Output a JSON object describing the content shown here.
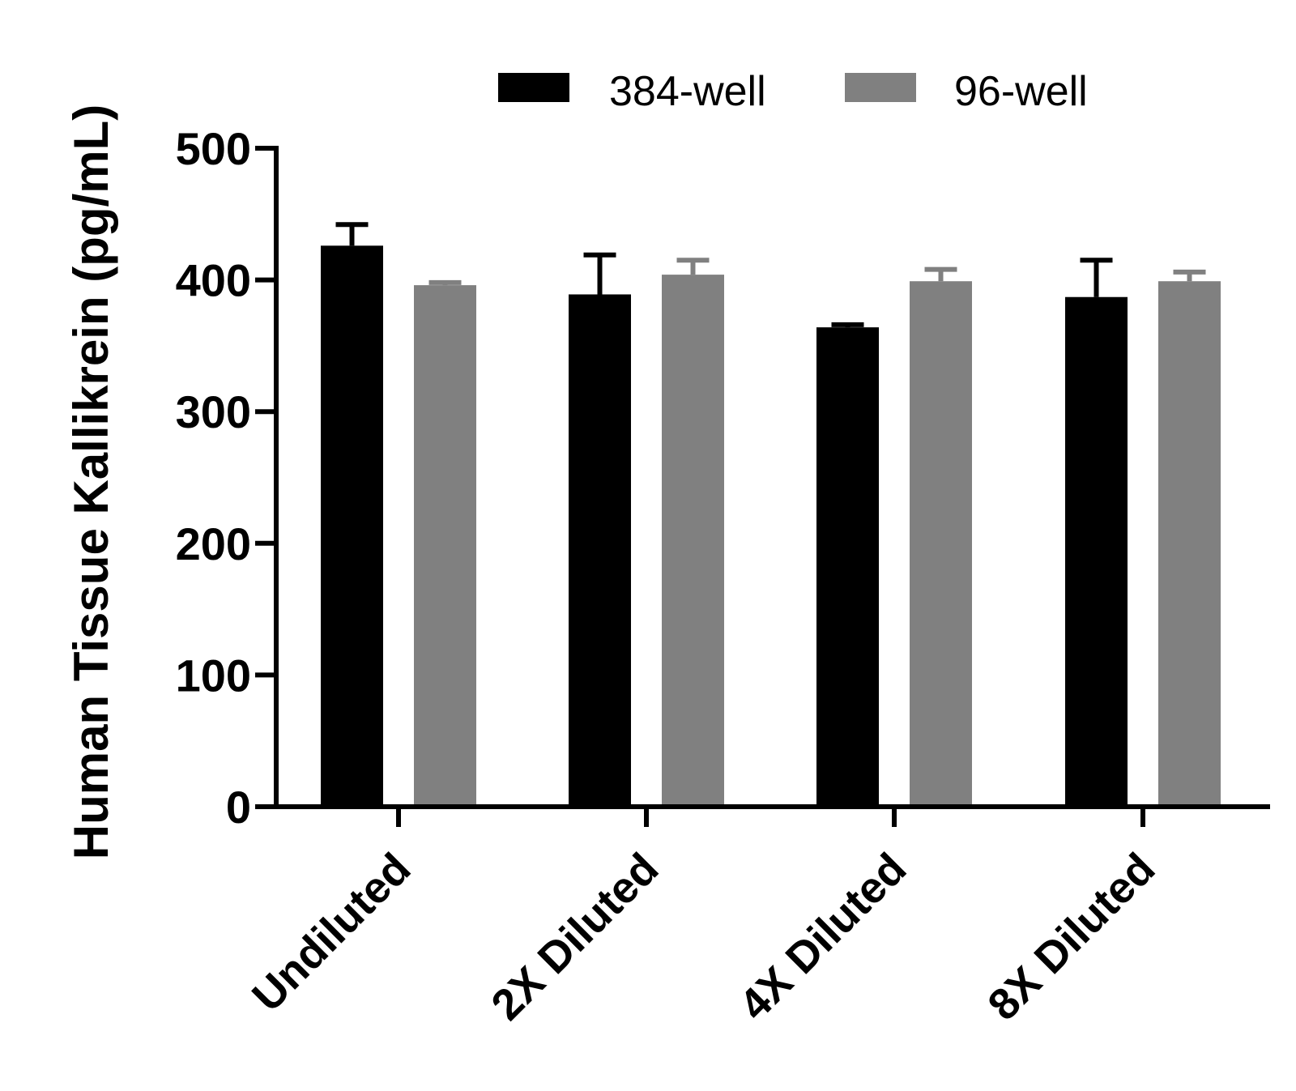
{
  "chart_data": {
    "type": "bar",
    "categories": [
      "Undiluted",
      "2X Diluted",
      "4X Diluted",
      "8X Diluted"
    ],
    "series": [
      {
        "name": "384-well",
        "color": "#000000",
        "values": [
          426,
          389,
          364,
          387
        ],
        "errors": [
          16,
          30,
          2,
          28
        ]
      },
      {
        "name": "96-well",
        "color": "#808080",
        "values": [
          396,
          404,
          399,
          399
        ],
        "errors": [
          2,
          11,
          9,
          7
        ]
      }
    ],
    "ylabel": "Human Tissue Kallikrein (pg/mL)",
    "ylim": [
      0,
      500
    ],
    "yticks": [
      0,
      100,
      200,
      300,
      400,
      500
    ],
    "legend_position": "top",
    "grid": false
  }
}
